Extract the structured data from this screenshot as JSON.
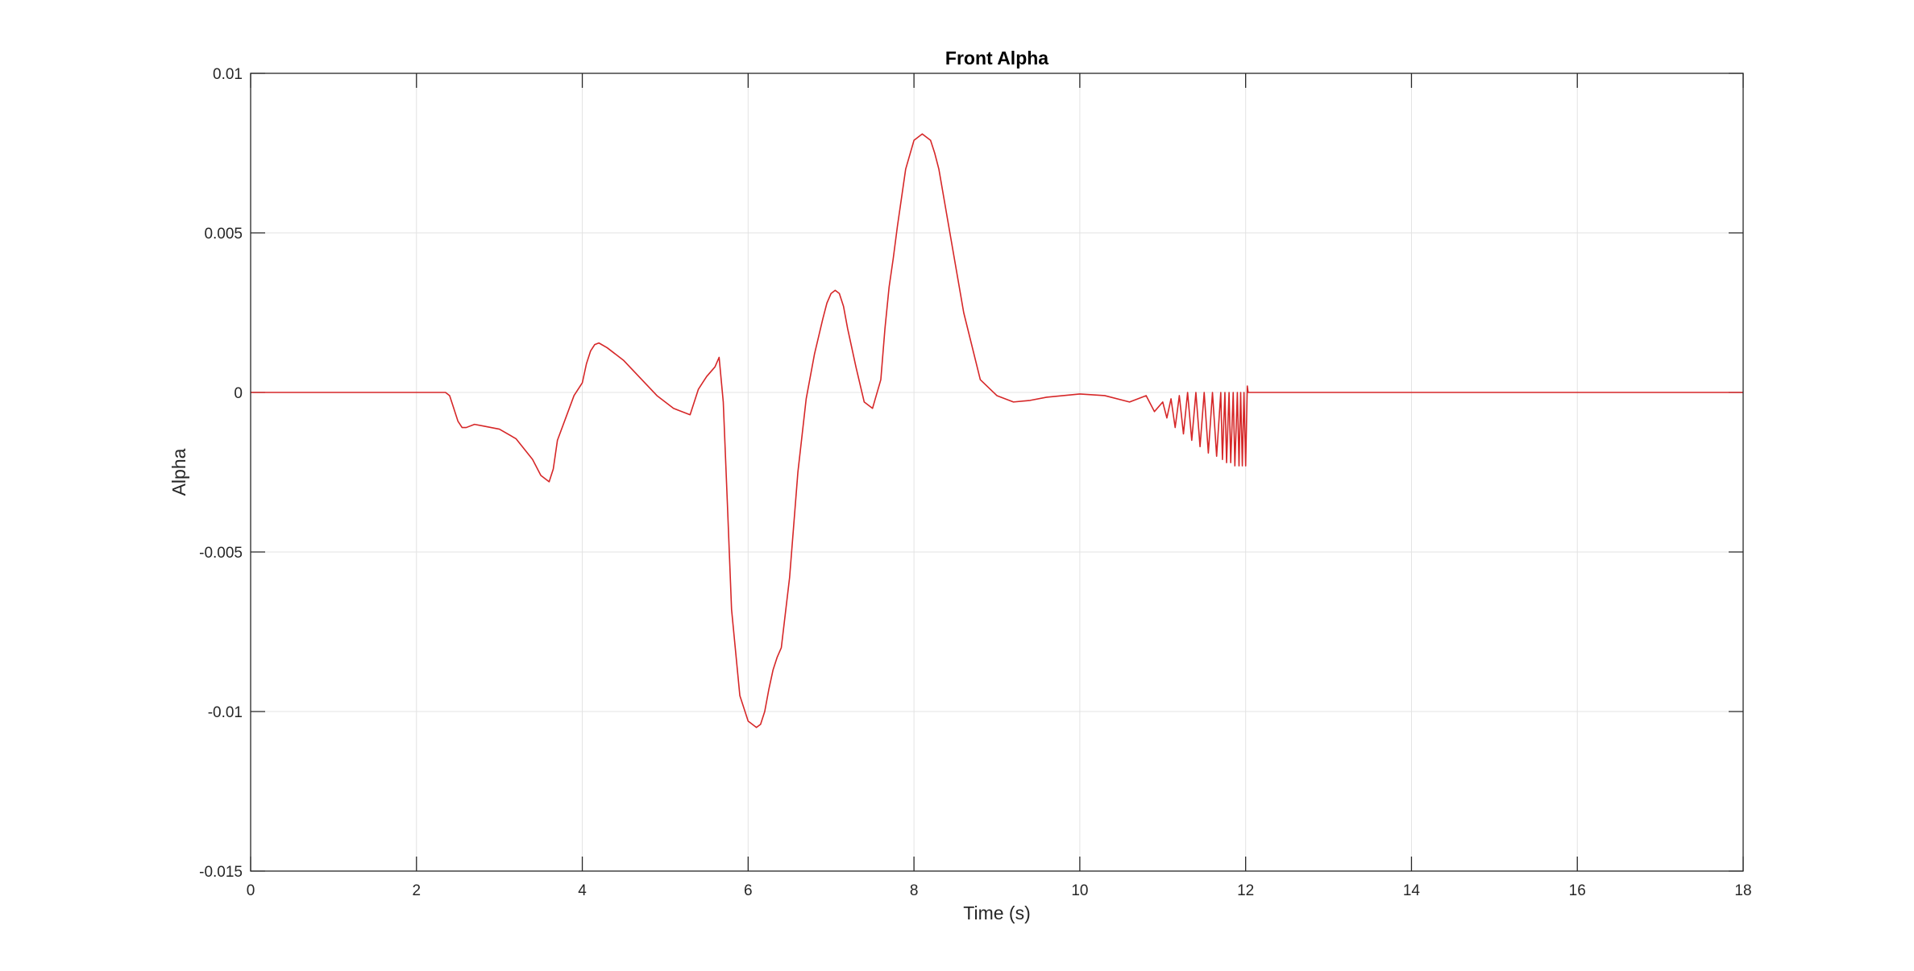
{
  "chart_data": {
    "type": "line",
    "title": "Front Alpha",
    "xlabel": "Time (s)",
    "ylabel": "Alpha",
    "xlim": [
      0,
      18
    ],
    "ylim": [
      -0.015,
      0.01
    ],
    "xticks": [
      0,
      2,
      4,
      6,
      8,
      10,
      12,
      14,
      16,
      18
    ],
    "xtick_labels": [
      "0",
      "2",
      "4",
      "6",
      "8",
      "10",
      "12",
      "14",
      "16",
      "18"
    ],
    "yticks": [
      -0.015,
      -0.01,
      -0.005,
      0,
      0.005,
      0.01
    ],
    "ytick_labels": [
      "-0.015",
      "-0.01",
      "-0.005",
      "0",
      "0.005",
      "0.01"
    ],
    "grid": true,
    "line_color": "#d62728",
    "series": [
      {
        "x": [
          0,
          2.35,
          2.4,
          2.45,
          2.5,
          2.55,
          2.6,
          2.7,
          2.8,
          3.0,
          3.2,
          3.4,
          3.5,
          3.6,
          3.65,
          3.7,
          3.8,
          3.9,
          4.0,
          4.05,
          4.1,
          4.15,
          4.2,
          4.3,
          4.5,
          4.7,
          4.9,
          5.1,
          5.3,
          5.35,
          5.4,
          5.45,
          5.5,
          5.6,
          5.65,
          5.7,
          5.75,
          5.8,
          5.9,
          6.0,
          6.1,
          6.15,
          6.2,
          6.25,
          6.3,
          6.35,
          6.4,
          6.5,
          6.6,
          6.7,
          6.8,
          6.9,
          6.95,
          7.0,
          7.05,
          7.1,
          7.15,
          7.2,
          7.3,
          7.4,
          7.5,
          7.6,
          7.65,
          7.7,
          7.75,
          7.8,
          7.9,
          8.0,
          8.1,
          8.2,
          8.25,
          8.3,
          8.4,
          8.6,
          8.8,
          9.0,
          9.2,
          9.4,
          9.6,
          9.8,
          10.0,
          10.3,
          10.6,
          10.8,
          10.9,
          11.0,
          11.05,
          11.1,
          11.15,
          11.2,
          11.25,
          11.3,
          11.35,
          11.4,
          11.45,
          11.5,
          11.55,
          11.6,
          11.65,
          11.7,
          11.72,
          11.75,
          11.77,
          11.8,
          11.82,
          11.85,
          11.87,
          11.9,
          11.92,
          11.94,
          11.96,
          11.98,
          12.0,
          12.02,
          12.03,
          12.04,
          12.06,
          12.1,
          14.0,
          18.0
        ],
        "y": [
          0,
          0,
          -0.0001,
          -0.0005,
          -0.0009,
          -0.0011,
          -0.0011,
          -0.001,
          -0.00105,
          -0.00115,
          -0.00145,
          -0.0021,
          -0.0026,
          -0.0028,
          -0.0024,
          -0.0015,
          -0.0008,
          -0.0001,
          0.0003,
          0.0009,
          0.0013,
          0.0015,
          0.00155,
          0.0014,
          0.001,
          0.00045,
          -0.0001,
          -0.0005,
          -0.0007,
          -0.0003,
          0.0001,
          0.0003,
          0.0005,
          0.0008,
          0.0011,
          -0.0003,
          -0.0035,
          -0.0068,
          -0.0095,
          -0.0103,
          -0.0105,
          -0.0104,
          -0.01,
          -0.0093,
          -0.0087,
          -0.0083,
          -0.008,
          -0.0058,
          -0.0025,
          -0.0002,
          0.0012,
          0.0023,
          0.0028,
          0.0031,
          0.0032,
          0.0031,
          0.0027,
          0.002,
          0.0008,
          -0.0003,
          -0.0005,
          0.0004,
          0.002,
          0.0033,
          0.0042,
          0.0052,
          0.007,
          0.0079,
          0.0081,
          0.0079,
          0.0075,
          0.007,
          0.0055,
          0.0025,
          0.0004,
          -0.0001,
          -0.0003,
          -0.00025,
          -0.00015,
          -0.0001,
          -5e-05,
          -0.0001,
          -0.0003,
          -0.0001,
          -0.0006,
          -0.0003,
          -0.0008,
          -0.0002,
          -0.0011,
          -0.0001,
          -0.0013,
          0.0,
          -0.0015,
          0.0,
          -0.0017,
          0.0,
          -0.0019,
          0.0,
          -0.002,
          0.0,
          -0.0021,
          0.0,
          -0.0022,
          0.0,
          -0.0022,
          0.0,
          -0.0023,
          0.0,
          -0.0023,
          0.0,
          -0.0023,
          0.0,
          -0.0023,
          0.0002,
          0.0,
          0.0,
          0.0,
          0.0,
          0.0,
          0.0
        ]
      }
    ]
  }
}
